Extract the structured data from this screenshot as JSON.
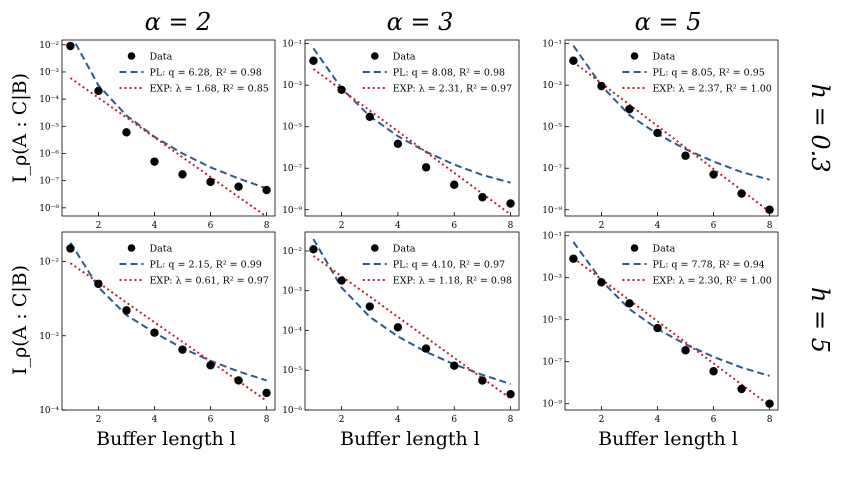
{
  "figure": {
    "xlabel": "Buffer length l",
    "ylabel": "I_ρ(A : C|B)",
    "column_titles": [
      "α = 2",
      "α = 3",
      "α = 5"
    ],
    "row_labels": [
      "h = 0.3",
      "h = 5"
    ],
    "colors": {
      "data": "#000000",
      "pl": "#2b5b8c",
      "exp": "#c0202c"
    }
  },
  "chart_data": [
    {
      "type": "scatter",
      "log_y": true,
      "x": [
        1,
        2,
        3,
        4,
        5,
        6,
        7,
        8
      ],
      "xticks": [
        "2",
        "4",
        "6",
        "8"
      ],
      "ylim": [
        5e-09,
        0.015
      ],
      "yticks": [
        "10⁻⁸",
        "10⁻⁷",
        "10⁻⁶",
        "10⁻⁵",
        "10⁻⁴",
        "10⁻³",
        "10⁻²"
      ],
      "series": [
        {
          "name": "Data",
          "values": [
            0.009,
            0.0002,
            6e-06,
            5e-07,
            1.7e-07,
            9e-08,
            6e-08,
            4.5e-08
          ]
        },
        {
          "name": "PL: q = 6.28, R² = 0.98",
          "q": 6.28,
          "R2": 0.98,
          "values": [
            0.025,
            0.00032,
            2.5e-05,
            4.1e-06,
            1e-06,
            3.1e-07,
            1.2e-07,
            5.2e-08
          ]
        },
        {
          "name": "EXP: λ = 1.68, R² = 0.85",
          "lambda": 1.68,
          "R2": 0.85,
          "values": [
            0.0006,
            0.000112,
            2.1e-05,
            3.9e-06,
            7.3e-07,
            1.36e-07,
            2.5e-08,
            4.8e-09
          ]
        }
      ]
    },
    {
      "type": "scatter",
      "log_y": true,
      "x": [
        1,
        2,
        3,
        4,
        5,
        6,
        7,
        8
      ],
      "xticks": [
        "2",
        "4",
        "6",
        "8"
      ],
      "ylim": [
        5e-10,
        0.15
      ],
      "yticks": [
        "10⁻⁹",
        "10⁻⁷",
        "10⁻⁵",
        "10⁻³",
        "10⁻¹"
      ],
      "series": [
        {
          "name": "Data",
          "values": [
            0.015,
            0.0006,
            3e-05,
            1.5e-06,
            1.1e-07,
            1.6e-08,
            4e-09,
            2e-09
          ]
        },
        {
          "name": "PL: q = 8.08, R² = 0.98",
          "q": 8.08,
          "R2": 0.98,
          "values": [
            0.06,
            0.00071,
            3.2e-05,
            3.5e-06,
            6.2e-07,
            1.5e-07,
            4.7e-08,
            2e-08
          ]
        },
        {
          "name": "EXP: λ = 2.31, R² = 0.97",
          "lambda": 2.31,
          "R2": 0.97,
          "values": [
            0.006,
            0.0006,
            6e-05,
            6e-06,
            6e-07,
            6e-08,
            6e-09,
            6e-10
          ]
        }
      ]
    },
    {
      "type": "scatter",
      "log_y": true,
      "x": [
        1,
        2,
        3,
        4,
        5,
        6,
        7,
        8
      ],
      "xticks": [
        "2",
        "4",
        "6",
        "8"
      ],
      "ylim": [
        5e-10,
        0.15
      ],
      "yticks": [
        "10⁻⁹",
        "10⁻⁷",
        "10⁻⁵",
        "10⁻³",
        "10⁻¹"
      ],
      "series": [
        {
          "name": "Data",
          "values": [
            0.015,
            0.0009,
            7e-05,
            5e-06,
            4e-07,
            5e-08,
            6e-09,
            1e-09
          ]
        },
        {
          "name": "PL: q = 8.05, R² = 0.95",
          "q": 8.05,
          "R2": 0.95,
          "values": [
            0.08,
            0.00094,
            3.6e-05,
            4.4e-06,
            8.3e-07,
            2.1e-07,
            6.5e-08,
            2.8e-08
          ]
        },
        {
          "name": "EXP: λ = 2.37, R² = 1.00",
          "lambda": 2.37,
          "R2": 1.0,
          "values": [
            0.0131,
            0.00123,
            0.000115,
            1.07e-05,
            1e-06,
            9.3e-08,
            8.6e-09,
            8e-10
          ]
        }
      ]
    },
    {
      "type": "scatter",
      "log_y": true,
      "x": [
        1,
        2,
        3,
        4,
        5,
        6,
        7,
        8
      ],
      "xticks": [
        "2",
        "4",
        "6",
        "8"
      ],
      "ylim": [
        0.0001,
        0.025
      ],
      "yticks": [
        "10⁻⁴",
        "10⁻³",
        "10⁻²"
      ],
      "series": [
        {
          "name": "Data",
          "values": [
            0.015,
            0.005,
            0.0022,
            0.0011,
            0.00065,
            0.0004,
            0.00025,
            0.00017
          ]
        },
        {
          "name": "PL: q = 2.15, R² = 0.99",
          "q": 2.15,
          "R2": 0.99,
          "values": [
            0.018,
            0.0045,
            0.0019,
            0.0011,
            0.00068,
            0.00046,
            0.00033,
            0.00025
          ]
        },
        {
          "name": "EXP: λ = 0.61, R² = 0.97",
          "lambda": 0.61,
          "R2": 0.97,
          "values": [
            0.0095,
            0.0052,
            0.0028,
            0.00152,
            0.00083,
            0.00045,
            0.000245,
            0.000133
          ]
        }
      ]
    },
    {
      "type": "scatter",
      "log_y": true,
      "x": [
        1,
        2,
        3,
        4,
        5,
        6,
        7,
        8
      ],
      "xticks": [
        "2",
        "4",
        "6",
        "8"
      ],
      "ylim": [
        1e-06,
        0.03
      ],
      "yticks": [
        "10⁻⁶",
        "10⁻⁵",
        "10⁻⁴",
        "10⁻³",
        "10⁻²"
      ],
      "series": [
        {
          "name": "Data",
          "values": [
            0.011,
            0.0018,
            0.0004,
            0.00012,
            3.5e-05,
            1.3e-05,
            5.5e-06,
            2.5e-06
          ]
        },
        {
          "name": "PL: q = 4.10, R² = 0.97",
          "q": 4.1,
          "R2": 0.97,
          "values": [
            0.02,
            0.0012,
            0.00022,
            7.1e-05,
            2.9e-05,
            1.4e-05,
            7.7e-06,
            4.5e-06
          ]
        },
        {
          "name": "EXP: λ = 1.18, R² = 0.98",
          "lambda": 1.18,
          "R2": 0.98,
          "values": [
            0.0075,
            0.0023,
            0.00071,
            0.000218,
            6.7e-05,
            2.06e-05,
            6.3e-06,
            1.95e-06
          ]
        }
      ]
    },
    {
      "type": "scatter",
      "log_y": true,
      "x": [
        1,
        2,
        3,
        4,
        5,
        6,
        7,
        8
      ],
      "xticks": [
        "2",
        "4",
        "6",
        "8"
      ],
      "ylim": [
        5e-10,
        0.15
      ],
      "yticks": [
        "10⁻⁹",
        "10⁻⁷",
        "10⁻⁵",
        "10⁻³",
        "10⁻¹"
      ],
      "series": [
        {
          "name": "Data",
          "values": [
            0.008,
            0.0006,
            6e-05,
            4e-06,
            3.5e-07,
            3.5e-08,
            5e-09,
            1e-09
          ]
        },
        {
          "name": "PL: q = 7.78, R² = 0.94",
          "q": 7.78,
          "R2": 0.94,
          "values": [
            0.05,
            0.00073,
            3.2e-05,
            3.6e-06,
            6.7e-07,
            1.7e-07,
            5.3e-08,
            2.1e-08
          ]
        },
        {
          "name": "EXP: λ = 2.30, R² = 1.00",
          "lambda": 2.3,
          "R2": 1.0,
          "values": [
            0.0085,
            0.000845,
            8.4e-05,
            8.4e-06,
            8.3e-07,
            8.3e-08,
            8.2e-09,
            8.2e-10
          ]
        }
      ]
    }
  ]
}
